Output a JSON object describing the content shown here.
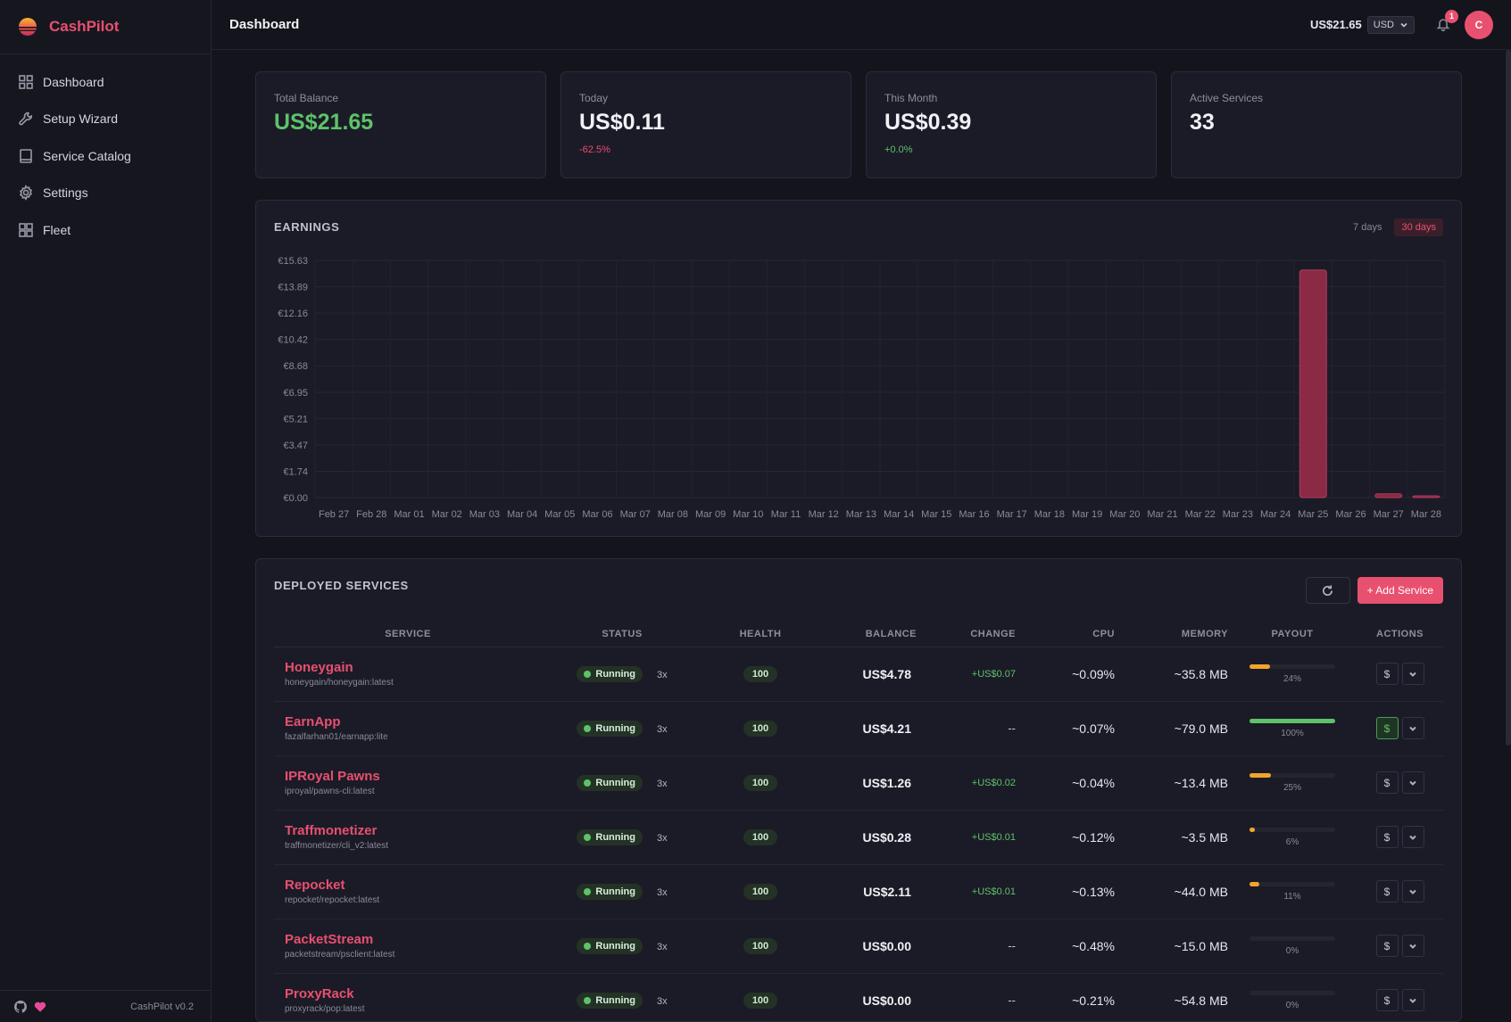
{
  "brand": {
    "name": "CashPilot"
  },
  "nav": [
    {
      "label": "Dashboard",
      "icon": "grid-icon"
    },
    {
      "label": "Setup Wizard",
      "icon": "wrench-icon"
    },
    {
      "label": "Service Catalog",
      "icon": "book-icon"
    },
    {
      "label": "Settings",
      "icon": "gear-icon"
    },
    {
      "label": "Fleet",
      "icon": "fleet-icon"
    }
  ],
  "footer": {
    "version": "CashPilot v0.2"
  },
  "header": {
    "title": "Dashboard",
    "balance": "US$21.65",
    "currency": "USD",
    "notification_count": "1",
    "avatar_initial": "C"
  },
  "stats": [
    {
      "label": "Total Balance",
      "value": "US$21.65",
      "delta": ""
    },
    {
      "label": "Today",
      "value": "US$0.11",
      "delta": "-62.5%"
    },
    {
      "label": "This Month",
      "value": "US$0.39",
      "delta": "+0.0%"
    },
    {
      "label": "Active Services",
      "value": "33",
      "delta": ""
    }
  ],
  "earnings": {
    "title": "EARNINGS",
    "tabs": [
      "7 days",
      "30 days"
    ],
    "active_tab": "30 days"
  },
  "chart_data": {
    "type": "bar",
    "title": "",
    "xlabel": "",
    "ylabel": "",
    "ylim": [
      0,
      15.63
    ],
    "y_ticks": [
      "€15.63",
      "€13.89",
      "€12.16",
      "€10.42",
      "€8.68",
      "€6.95",
      "€5.21",
      "€3.47",
      "€1.74",
      "€0.00"
    ],
    "categories": [
      "Feb 27",
      "Feb 28",
      "Mar 01",
      "Mar 02",
      "Mar 03",
      "Mar 04",
      "Mar 05",
      "Mar 06",
      "Mar 07",
      "Mar 08",
      "Mar 09",
      "Mar 10",
      "Mar 11",
      "Mar 12",
      "Mar 13",
      "Mar 14",
      "Mar 15",
      "Mar 16",
      "Mar 17",
      "Mar 18",
      "Mar 19",
      "Mar 20",
      "Mar 21",
      "Mar 22",
      "Mar 23",
      "Mar 24",
      "Mar 25",
      "Mar 26",
      "Mar 27",
      "Mar 28"
    ],
    "values": [
      0,
      0,
      0,
      0,
      0,
      0,
      0,
      0,
      0,
      0,
      0,
      0,
      0,
      0,
      0,
      0,
      0,
      0,
      0,
      0,
      0,
      0,
      0,
      0,
      0,
      0,
      15.0,
      0,
      0.25,
      0.1
    ],
    "bar_color": "#8a2a44",
    "grid": true
  },
  "services": {
    "title": "DEPLOYED SERVICES",
    "add_label": "+ Add Service",
    "columns": [
      "SERVICE",
      "STATUS",
      "HEALTH",
      "BALANCE",
      "CHANGE",
      "CPU",
      "MEMORY",
      "PAYOUT",
      "ACTIONS"
    ],
    "rows": [
      {
        "name": "Honeygain",
        "image": "honeygain/honeygain:latest",
        "status": "Running",
        "count": "3x",
        "health": "100",
        "balance": "US$4.78",
        "change": "+US$0.07",
        "cpu": "~0.09%",
        "memory": "~35.8 MB",
        "payout": 24,
        "payout_label": "24%"
      },
      {
        "name": "EarnApp",
        "image": "fazalfarhan01/earnapp:lite",
        "status": "Running",
        "count": "3x",
        "health": "100",
        "balance": "US$4.21",
        "change": "--",
        "cpu": "~0.07%",
        "memory": "~79.0 MB",
        "payout": 100,
        "payout_label": "100%"
      },
      {
        "name": "IPRoyal Pawns",
        "image": "iproyal/pawns-cli:latest",
        "status": "Running",
        "count": "3x",
        "health": "100",
        "balance": "US$1.26",
        "change": "+US$0.02",
        "cpu": "~0.04%",
        "memory": "~13.4 MB",
        "payout": 25,
        "payout_label": "25%"
      },
      {
        "name": "Traffmonetizer",
        "image": "traffmonetizer/cli_v2:latest",
        "status": "Running",
        "count": "3x",
        "health": "100",
        "balance": "US$0.28",
        "change": "+US$0.01",
        "cpu": "~0.12%",
        "memory": "~3.5 MB",
        "payout": 6,
        "payout_label": "6%"
      },
      {
        "name": "Repocket",
        "image": "repocket/repocket:latest",
        "status": "Running",
        "count": "3x",
        "health": "100",
        "balance": "US$2.11",
        "change": "+US$0.01",
        "cpu": "~0.13%",
        "memory": "~44.0 MB",
        "payout": 11,
        "payout_label": "11%"
      },
      {
        "name": "PacketStream",
        "image": "packetstream/psclient:latest",
        "status": "Running",
        "count": "3x",
        "health": "100",
        "balance": "US$0.00",
        "change": "--",
        "cpu": "~0.48%",
        "memory": "~15.0 MB",
        "payout": 0,
        "payout_label": "0%"
      },
      {
        "name": "ProxyRack",
        "image": "proxyrack/pop:latest",
        "status": "Running",
        "count": "3x",
        "health": "100",
        "balance": "US$0.00",
        "change": "--",
        "cpu": "~0.21%",
        "memory": "~54.8 MB",
        "payout": 0,
        "payout_label": "0%"
      }
    ]
  },
  "colors": {
    "accent": "#e8506f",
    "positive": "#5ec26a",
    "warning": "#f0a62a"
  }
}
